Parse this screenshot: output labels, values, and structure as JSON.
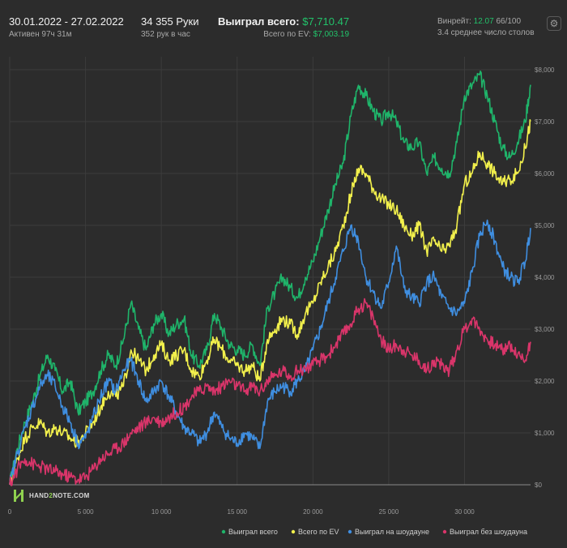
{
  "header": {
    "date_range": "30.01.2022 - 27.02.2022",
    "active_time": "Активен 97ч 31м",
    "hands": "34 355 Руки",
    "hands_per_hour": "352 рук в час",
    "won_total_label": "Выиграл всего:",
    "won_total_value": "$7,710.47",
    "ev_total_label": "Всего по EV:",
    "ev_total_value": "$7,003.19",
    "winrate_label": "Винрейт:",
    "winrate_value": "12.07",
    "winrate_rest": "66/100",
    "avg_tables": "3.4 среднее число столов",
    "settings_icon": "gear-icon"
  },
  "logo": {
    "text_main": "HAND",
    "text_mid": "2",
    "text_end": "NOTE.COM"
  },
  "colors": {
    "won": "#1fb46a",
    "ev": "#f2f04c",
    "showdown": "#3f8ee0",
    "nonshowdown": "#d9356a",
    "grid": "#3c3c3c",
    "zero": "#8a8a8a"
  },
  "chart_data": {
    "type": "line",
    "title": "",
    "xlabel": "",
    "ylabel": "",
    "xlim": [
      0,
      34355
    ],
    "ylim": [
      0,
      8400
    ],
    "x_ticks": [
      0,
      5000,
      10000,
      15000,
      20000,
      25000,
      30000
    ],
    "x_tick_labels": [
      "0",
      "5 000",
      "10 000",
      "15 000",
      "20 000",
      "25 000",
      "30 000"
    ],
    "y_ticks": [
      0,
      1000,
      2000,
      3000,
      4000,
      5000,
      6000,
      7000,
      8000
    ],
    "y_tick_labels": [
      "$0",
      "$1,000",
      "$2,000",
      "$3,000",
      "$4,000",
      "$5,000",
      "$6,000",
      "$7,000",
      "$8,000"
    ],
    "legend": "bottom-right",
    "series": [
      {
        "name": "Выиграл всего",
        "color_key": "won",
        "x": [
          0,
          500,
          1000,
          1500,
          2000,
          2500,
          3000,
          3500,
          4000,
          4500,
          5000,
          5500,
          6000,
          6500,
          7000,
          7500,
          8000,
          8500,
          9000,
          9500,
          10000,
          10500,
          11000,
          11500,
          12000,
          12500,
          13000,
          13500,
          14000,
          14500,
          15000,
          15500,
          16000,
          16500,
          17000,
          17500,
          18000,
          18500,
          19000,
          19500,
          20000,
          20500,
          21000,
          21500,
          22000,
          22500,
          23000,
          23500,
          24000,
          24500,
          25000,
          25500,
          26000,
          26500,
          27000,
          27500,
          28000,
          28500,
          29000,
          29500,
          30000,
          30500,
          31000,
          31500,
          32000,
          32500,
          33000,
          33500,
          34000,
          34355
        ],
        "values": [
          0,
          700,
          1200,
          1600,
          2100,
          2500,
          2200,
          1800,
          2000,
          1400,
          1600,
          1800,
          2200,
          2500,
          2300,
          2800,
          3500,
          3000,
          2600,
          3100,
          3300,
          2900,
          3100,
          3200,
          2500,
          2300,
          2600,
          3300,
          3000,
          2700,
          2600,
          2500,
          2700,
          2300,
          3400,
          3700,
          4000,
          3800,
          3600,
          4000,
          4300,
          4800,
          5300,
          5800,
          6200,
          7100,
          7700,
          7500,
          7200,
          7000,
          7200,
          7000,
          6600,
          6500,
          6600,
          6000,
          6300,
          6100,
          6000,
          6600,
          7500,
          7700,
          7900,
          7500,
          7000,
          6500,
          6300,
          6600,
          7000,
          7710
        ]
      },
      {
        "name": "Всего по EV",
        "color_key": "ev",
        "x": [
          0,
          500,
          1000,
          1500,
          2000,
          2500,
          3000,
          3500,
          4000,
          4500,
          5000,
          5500,
          6000,
          6500,
          7000,
          7500,
          8000,
          8500,
          9000,
          9500,
          10000,
          10500,
          11000,
          11500,
          12000,
          12500,
          13000,
          13500,
          14000,
          14500,
          15000,
          15500,
          16000,
          16500,
          17000,
          17500,
          18000,
          18500,
          19000,
          19500,
          20000,
          20500,
          21000,
          21500,
          22000,
          22500,
          23000,
          23500,
          24000,
          24500,
          25000,
          25500,
          26000,
          26500,
          27000,
          27500,
          28000,
          28500,
          29000,
          29500,
          30000,
          30500,
          31000,
          31500,
          32000,
          32500,
          33000,
          33500,
          34000,
          34355
        ],
        "values": [
          0,
          500,
          900,
          1100,
          1200,
          1000,
          1100,
          1000,
          900,
          800,
          1000,
          1200,
          1500,
          1800,
          1700,
          1900,
          2600,
          2400,
          2200,
          2500,
          2700,
          2400,
          2500,
          2600,
          2200,
          2100,
          2400,
          2800,
          2600,
          2400,
          2300,
          2200,
          2300,
          2000,
          2800,
          3000,
          3200,
          3100,
          2900,
          3300,
          3500,
          3900,
          4200,
          4500,
          5000,
          5600,
          6100,
          6000,
          5700,
          5500,
          5400,
          5300,
          5000,
          4800,
          5000,
          4500,
          4700,
          4500,
          4600,
          5000,
          5800,
          6000,
          6400,
          6200,
          6000,
          5800,
          5900,
          6000,
          6500,
          7003
        ]
      },
      {
        "name": "Выиграл на шоудауне",
        "color_key": "showdown",
        "x": [
          0,
          500,
          1000,
          1500,
          2000,
          2500,
          3000,
          3500,
          4000,
          4500,
          5000,
          5500,
          6000,
          6500,
          7000,
          7500,
          8000,
          8500,
          9000,
          9500,
          10000,
          10500,
          11000,
          11500,
          12000,
          12500,
          13000,
          13500,
          14000,
          14500,
          15000,
          15500,
          16000,
          16500,
          17000,
          17500,
          18000,
          18500,
          19000,
          19500,
          20000,
          20500,
          21000,
          21500,
          22000,
          22500,
          23000,
          23500,
          24000,
          24500,
          25000,
          25500,
          26000,
          26500,
          27000,
          27500,
          28000,
          28500,
          29000,
          29500,
          30000,
          30500,
          31000,
          31500,
          32000,
          32500,
          33000,
          33500,
          34000,
          34355
        ],
        "values": [
          0,
          600,
          1100,
          1500,
          1900,
          2100,
          1900,
          1500,
          1200,
          800,
          900,
          1300,
          1700,
          2000,
          1800,
          2200,
          2400,
          2000,
          1600,
          1800,
          2000,
          1700,
          1400,
          1100,
          1000,
          800,
          1000,
          1400,
          1100,
          900,
          800,
          1000,
          900,
          700,
          1600,
          1800,
          1900,
          1800,
          2000,
          2200,
          2600,
          3000,
          3500,
          4000,
          4500,
          5000,
          4700,
          4000,
          3700,
          3400,
          3900,
          4600,
          3800,
          3600,
          3500,
          3900,
          4000,
          3600,
          3400,
          3300,
          3500,
          4100,
          4800,
          5100,
          4700,
          4200,
          4000,
          3900,
          4300,
          4950
        ]
      },
      {
        "name": "Выиграл без шоудауна",
        "color_key": "nonshowdown",
        "x": [
          0,
          500,
          1000,
          1500,
          2000,
          2500,
          3000,
          3500,
          4000,
          4500,
          5000,
          5500,
          6000,
          6500,
          7000,
          7500,
          8000,
          8500,
          9000,
          9500,
          10000,
          10500,
          11000,
          11500,
          12000,
          12500,
          13000,
          13500,
          14000,
          14500,
          15000,
          15500,
          16000,
          16500,
          17000,
          17500,
          18000,
          18500,
          19000,
          19500,
          20000,
          20500,
          21000,
          21500,
          22000,
          22500,
          23000,
          23500,
          24000,
          24500,
          25000,
          25500,
          26000,
          26500,
          27000,
          27500,
          28000,
          28500,
          29000,
          29500,
          30000,
          30500,
          31000,
          31500,
          32000,
          32500,
          33000,
          33500,
          34000,
          34355
        ],
        "values": [
          0,
          300,
          500,
          400,
          350,
          300,
          250,
          200,
          150,
          100,
          150,
          300,
          500,
          600,
          700,
          800,
          1000,
          1100,
          1200,
          1300,
          1200,
          1300,
          1400,
          1500,
          1700,
          1800,
          1900,
          1800,
          1900,
          2000,
          1900,
          1800,
          1900,
          1800,
          2000,
          2100,
          2200,
          2100,
          2200,
          2250,
          2300,
          2400,
          2500,
          2700,
          2900,
          3100,
          3400,
          3500,
          3200,
          2800,
          2600,
          2700,
          2600,
          2500,
          2400,
          2200,
          2400,
          2300,
          2200,
          2600,
          3000,
          3200,
          3000,
          2800,
          2700,
          2600,
          2700,
          2500,
          2400,
          2757
        ]
      }
    ]
  }
}
